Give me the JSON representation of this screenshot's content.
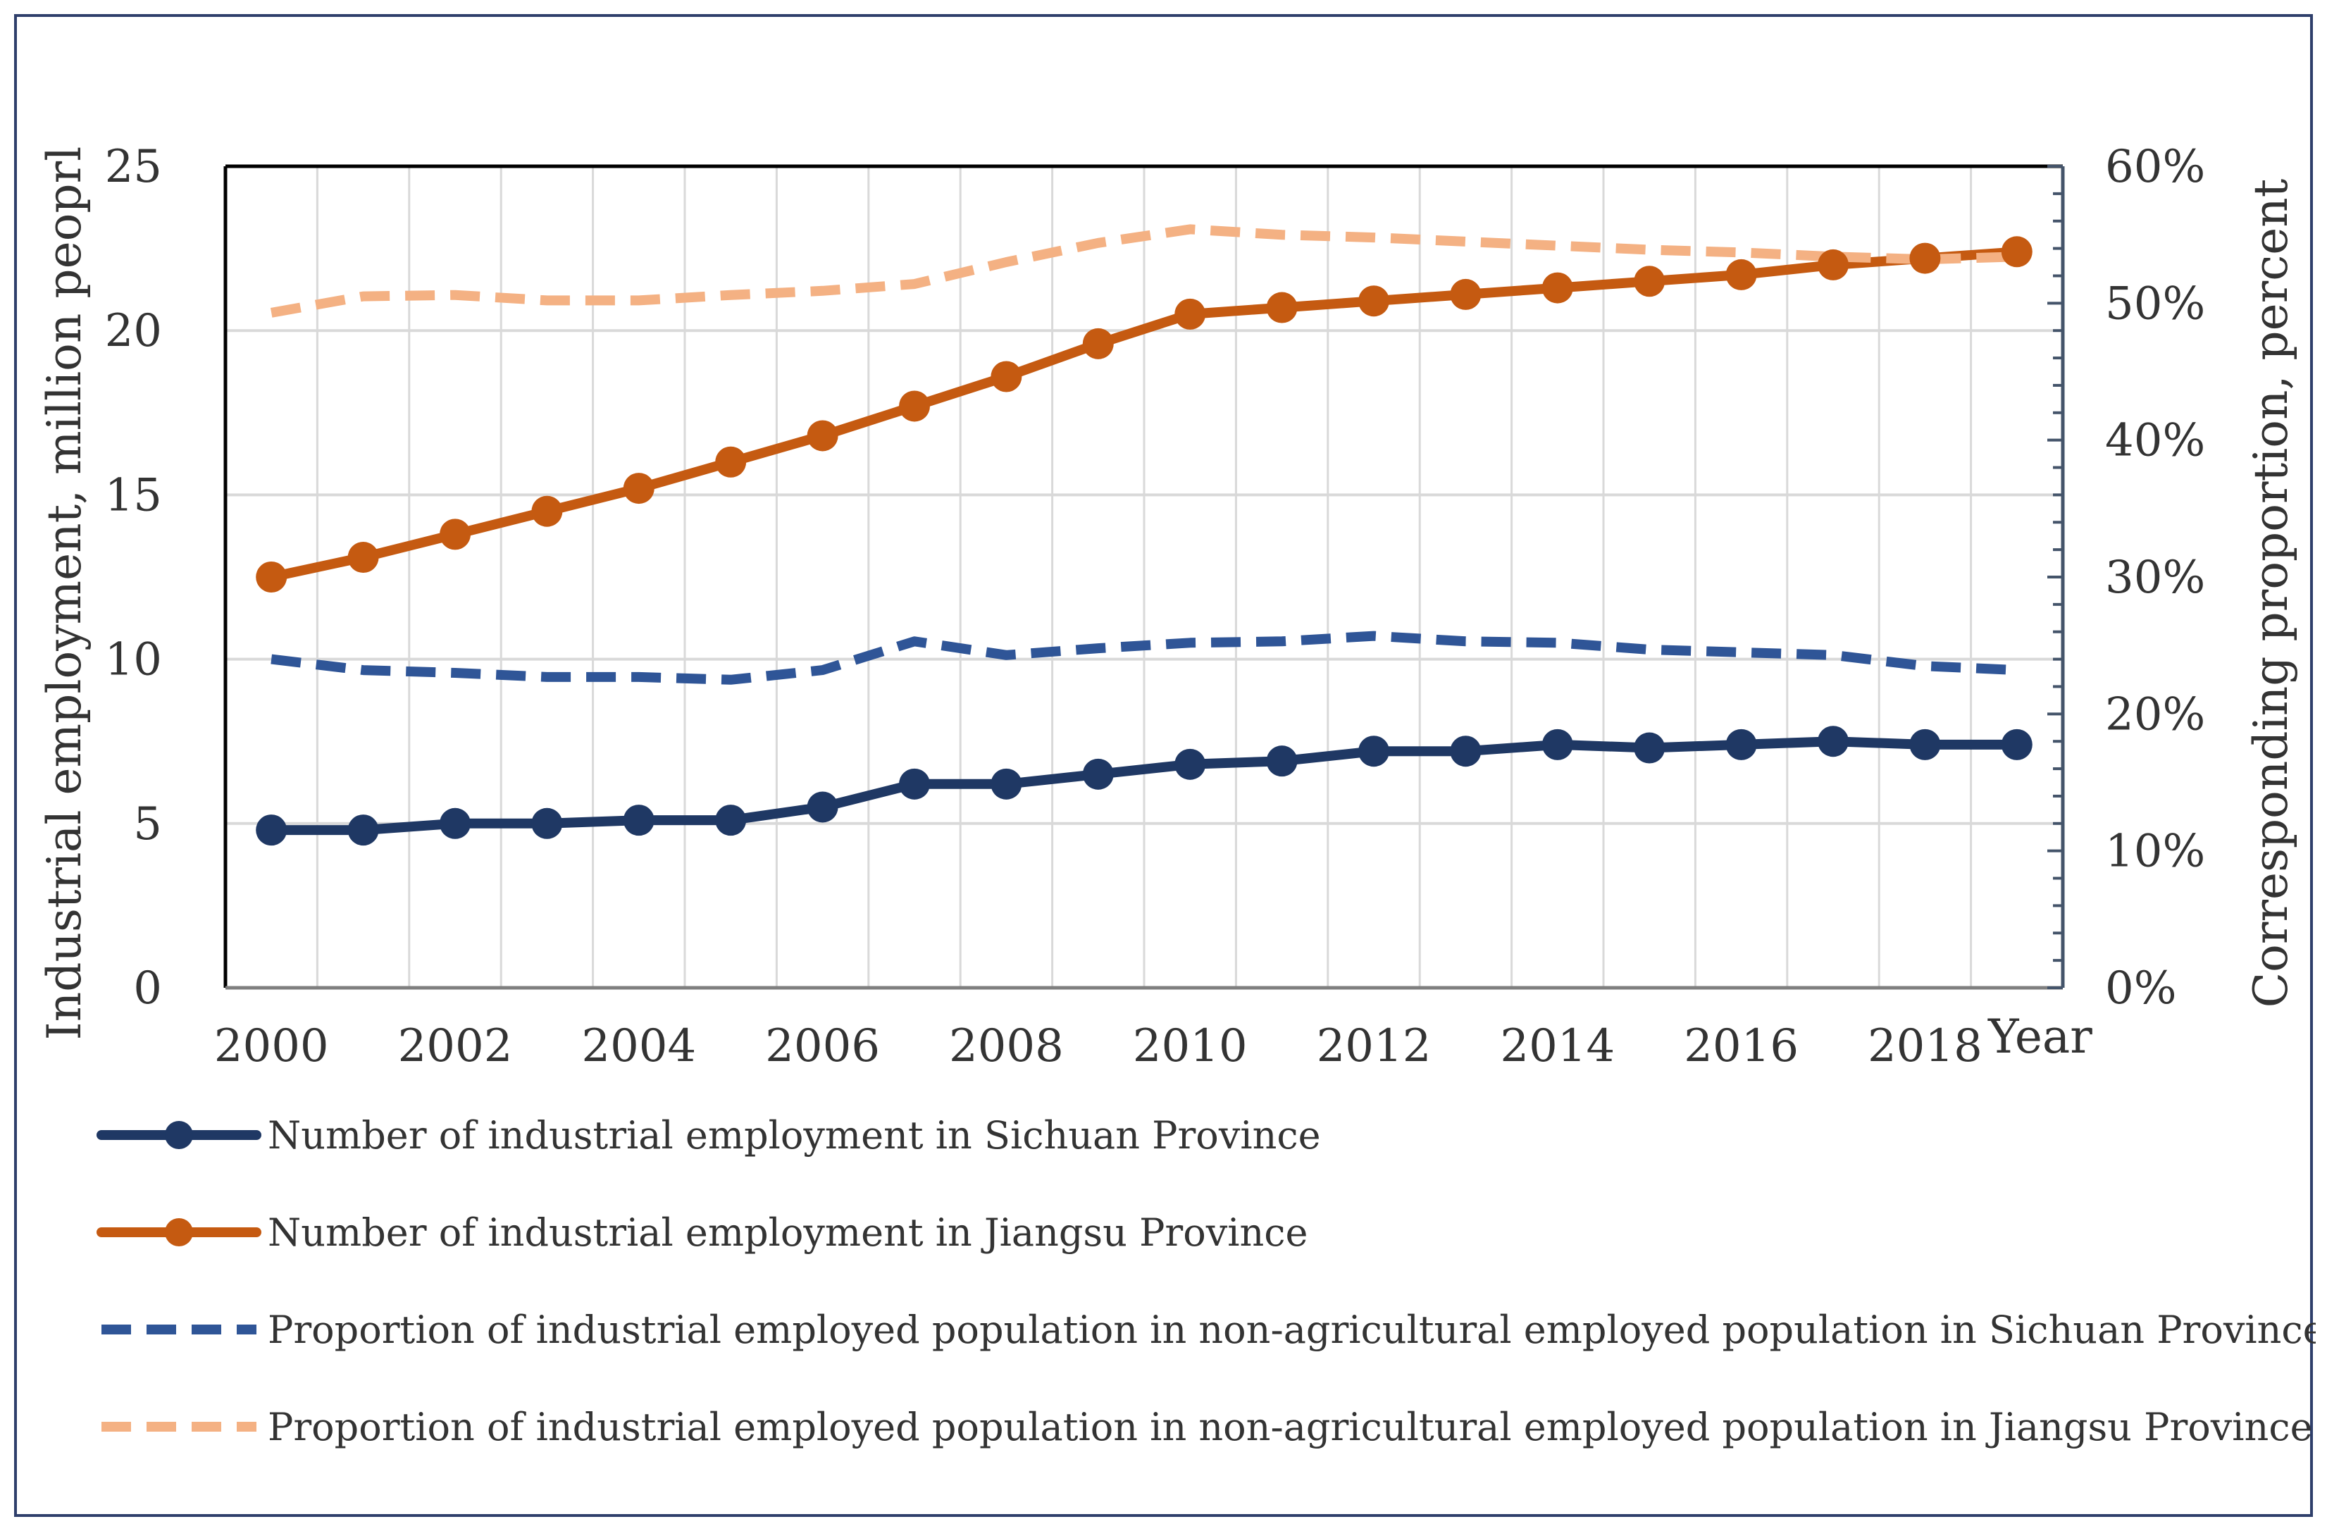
{
  "chart_data": {
    "type": "line",
    "x": [
      2000,
      2001,
      2002,
      2003,
      2004,
      2005,
      2006,
      2007,
      2008,
      2009,
      2010,
      2011,
      2012,
      2013,
      2014,
      2015,
      2016,
      2017,
      2018,
      2019
    ],
    "x_tick_labels": [
      "2000",
      "2002",
      "2004",
      "2006",
      "2008",
      "2010",
      "2012",
      "2014",
      "2016",
      "2018"
    ],
    "x_tick_values": [
      2000,
      2002,
      2004,
      2006,
      2008,
      2010,
      2012,
      2014,
      2016,
      2018
    ],
    "xlabel": "Year",
    "ylabel_left": "Industrial employment, million peoprl",
    "ylabel_right": "Corresponding proportion, percent",
    "ylim_left": [
      0,
      25
    ],
    "ylim_right": [
      0,
      60
    ],
    "y_left_ticks": [
      "0",
      "5",
      "10",
      "15",
      "20",
      "25"
    ],
    "y_right_ticks": [
      "0%",
      "10%",
      "20%",
      "30%",
      "40%",
      "50%",
      "60%"
    ],
    "grid": true,
    "legend_position": "bottom",
    "series": [
      {
        "name": "Number of industrial employment in Sichuan Province",
        "axis": "left",
        "style": "solid",
        "marker": true,
        "color": "#1f3864",
        "values": [
          4.8,
          4.8,
          5.0,
          5.0,
          5.1,
          5.1,
          5.5,
          6.2,
          6.2,
          6.5,
          6.8,
          6.9,
          7.2,
          7.2,
          7.4,
          7.3,
          7.4,
          7.5,
          7.4,
          7.4
        ]
      },
      {
        "name": "Number of industrial employment in Jiangsu Province",
        "axis": "left",
        "style": "solid",
        "marker": true,
        "color": "#c55a11",
        "values": [
          12.5,
          13.1,
          13.8,
          14.5,
          15.2,
          16.0,
          16.8,
          17.7,
          18.6,
          19.6,
          20.5,
          20.7,
          20.9,
          21.1,
          21.3,
          21.5,
          21.7,
          22.0,
          22.2,
          22.4
        ]
      },
      {
        "name": "Proportion of industrial employed population in non-agricultural employed population in Sichuan Province",
        "axis": "right",
        "style": "dashed",
        "marker": false,
        "color": "#2f5597",
        "values": [
          24.0,
          23.2,
          23.0,
          22.7,
          22.7,
          22.5,
          23.2,
          25.3,
          24.3,
          24.8,
          25.2,
          25.3,
          25.7,
          25.3,
          25.2,
          24.7,
          24.5,
          24.3,
          23.5,
          23.2
        ]
      },
      {
        "name": "Proportion of industrial employed population in non-agricultural employed population in Jiangsu Province",
        "axis": "right",
        "style": "dashed",
        "marker": false,
        "color": "#f4b183",
        "values": [
          49.3,
          50.5,
          50.6,
          50.2,
          50.2,
          50.6,
          50.9,
          51.4,
          53.0,
          54.4,
          55.4,
          55.0,
          54.8,
          54.5,
          54.2,
          53.9,
          53.7,
          53.4,
          53.2,
          53.4
        ]
      }
    ]
  }
}
